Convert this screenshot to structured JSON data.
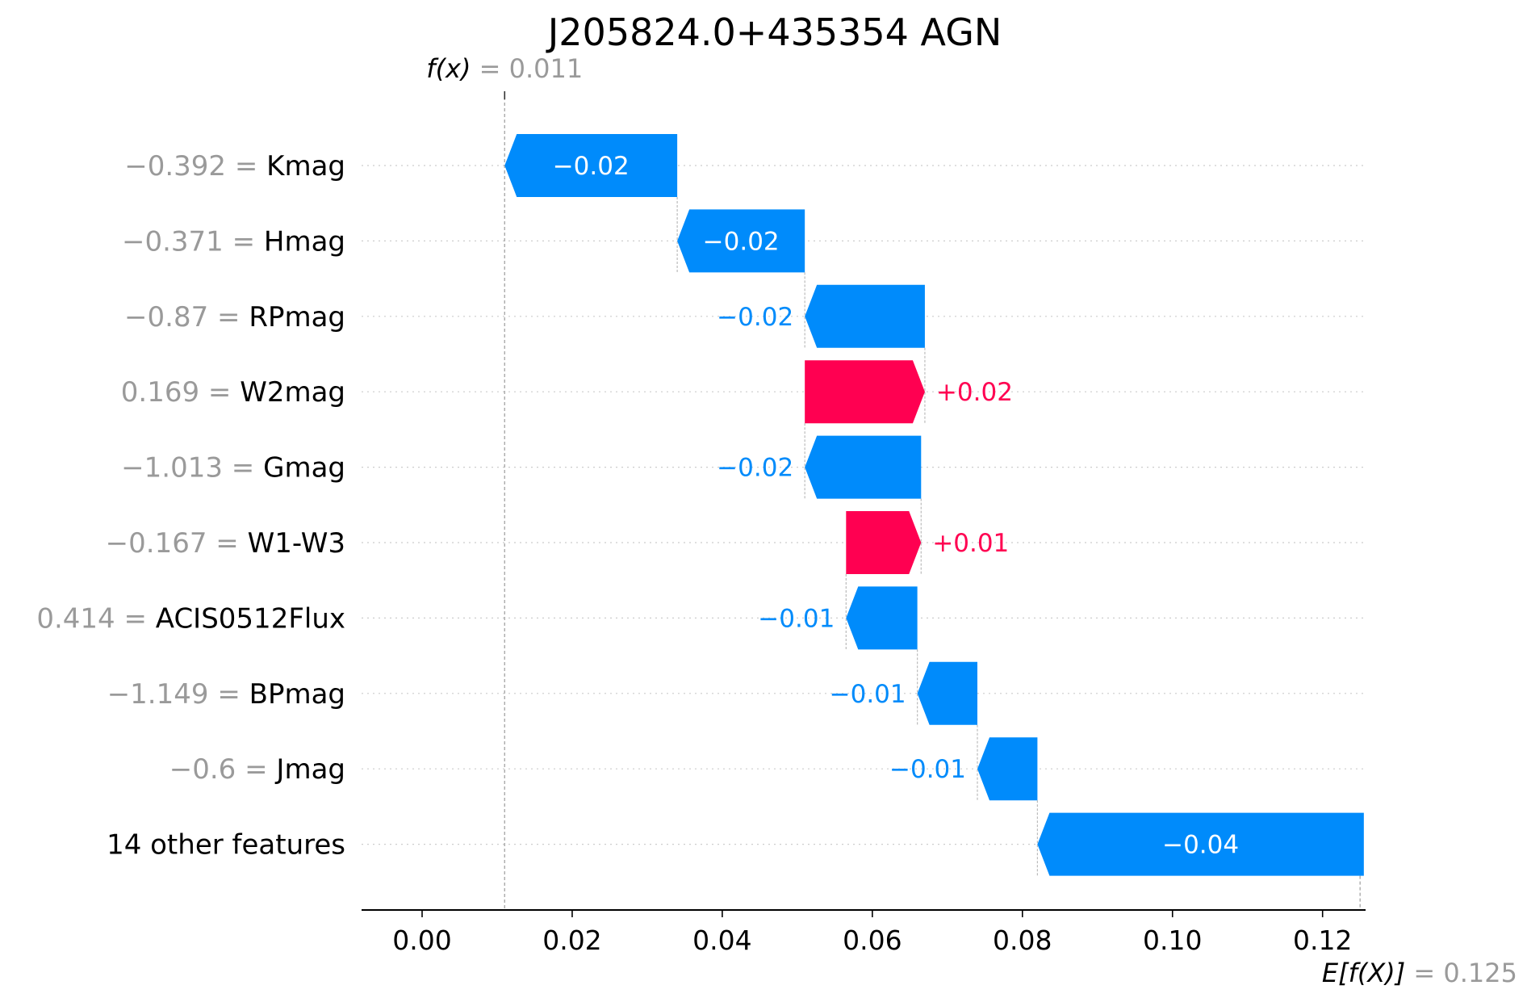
{
  "chart_data": {
    "type": "waterfall",
    "title": "J205824.0+435354 AGN",
    "fx": {
      "label": "f(x)",
      "value": 0.011,
      "value_text": "0.011"
    },
    "efx": {
      "label": "E[f(X)]",
      "value": 0.125,
      "value_text": "0.125"
    },
    "xlim": [
      -0.008,
      0.126
    ],
    "x_ticks": [
      0.0,
      0.02,
      0.04,
      0.06,
      0.08,
      0.1,
      0.12
    ],
    "x_tick_labels": [
      "0.00",
      "0.02",
      "0.04",
      "0.06",
      "0.08",
      "0.10",
      "0.12"
    ],
    "grid": "dotted horizontal",
    "features": [
      {
        "value": "−0.392",
        "name": "Kmag",
        "start": 0.034,
        "end": 0.011,
        "label": "−0.02"
      },
      {
        "value": "−0.371",
        "name": "Hmag",
        "start": 0.051,
        "end": 0.034,
        "label": "−0.02"
      },
      {
        "value": "−0.87",
        "name": "RPmag",
        "start": 0.067,
        "end": 0.051,
        "label": "−0.02"
      },
      {
        "value": "0.169",
        "name": "W2mag",
        "start": 0.051,
        "end": 0.067,
        "label": "+0.02"
      },
      {
        "value": "−1.013",
        "name": "Gmag",
        "start": 0.0665,
        "end": 0.051,
        "label": "−0.02"
      },
      {
        "value": "−0.167",
        "name": "W1-W3",
        "start": 0.0565,
        "end": 0.0665,
        "label": "+0.01"
      },
      {
        "value": "0.414",
        "name": "ACIS0512Flux",
        "start": 0.066,
        "end": 0.0565,
        "label": "−0.01"
      },
      {
        "value": "−1.149",
        "name": "BPmag",
        "start": 0.074,
        "end": 0.066,
        "label": "−0.01"
      },
      {
        "value": "−0.6",
        "name": "Jmag",
        "start": 0.082,
        "end": 0.074,
        "label": "−0.01"
      },
      {
        "value": "",
        "name": "14 other features",
        "start": 0.1255,
        "end": 0.082,
        "label": "−0.04"
      }
    ],
    "colors": {
      "positive": "#ff0051",
      "negative": "#008bfb",
      "grid": "#cccccc",
      "label_gray": "#9a9a9a"
    }
  }
}
